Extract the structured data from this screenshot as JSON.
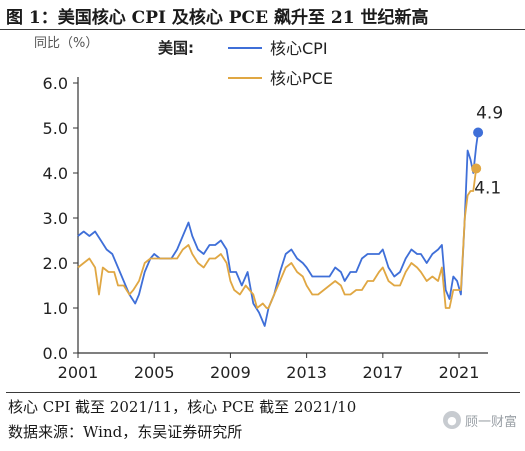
{
  "figure": {
    "title": "图 1：美国核心 CPI 及核心 PCE 飙升至 21 世纪新高",
    "note": "核心 CPI 截至 2021/11，核心 PCE 截至 2021/10",
    "source": "数据来源：Wind，东吴证券研究所",
    "watermark": "顾一财富"
  },
  "chart_data": {
    "type": "line",
    "title": "",
    "xlabel": "",
    "ylabel": "同比（%）",
    "legend_title": "美国:",
    "legend_position": "top-center",
    "grid": false,
    "xlim": [
      2001.0,
      2022.1
    ],
    "ylim": [
      0,
      6
    ],
    "x_ticks": [
      "2001",
      "2005",
      "2009",
      "2013",
      "2017",
      "2021"
    ],
    "y_ticks": [
      "0.0",
      "1.0",
      "2.0",
      "3.0",
      "4.0",
      "5.0",
      "6.0"
    ],
    "series": [
      {
        "name": "核心CPI",
        "color": "#3f6fd8",
        "points": [
          [
            2001.0,
            2.6
          ],
          [
            2001.3,
            2.7
          ],
          [
            2001.6,
            2.6
          ],
          [
            2001.9,
            2.7
          ],
          [
            2002.2,
            2.5
          ],
          [
            2002.5,
            2.3
          ],
          [
            2002.8,
            2.2
          ],
          [
            2003.1,
            1.9
          ],
          [
            2003.4,
            1.6
          ],
          [
            2003.7,
            1.3
          ],
          [
            2004.0,
            1.1
          ],
          [
            2004.2,
            1.3
          ],
          [
            2004.5,
            1.8
          ],
          [
            2004.8,
            2.1
          ],
          [
            2005.0,
            2.2
          ],
          [
            2005.3,
            2.1
          ],
          [
            2005.6,
            2.1
          ],
          [
            2005.9,
            2.1
          ],
          [
            2006.2,
            2.3
          ],
          [
            2006.5,
            2.6
          ],
          [
            2006.8,
            2.9
          ],
          [
            2007.0,
            2.6
          ],
          [
            2007.3,
            2.3
          ],
          [
            2007.6,
            2.2
          ],
          [
            2007.9,
            2.4
          ],
          [
            2008.2,
            2.4
          ],
          [
            2008.5,
            2.5
          ],
          [
            2008.8,
            2.3
          ],
          [
            2009.0,
            1.8
          ],
          [
            2009.3,
            1.8
          ],
          [
            2009.6,
            1.5
          ],
          [
            2009.9,
            1.8
          ],
          [
            2010.2,
            1.1
          ],
          [
            2010.5,
            0.9
          ],
          [
            2010.8,
            0.6
          ],
          [
            2011.0,
            1.0
          ],
          [
            2011.3,
            1.3
          ],
          [
            2011.6,
            1.8
          ],
          [
            2011.9,
            2.2
          ],
          [
            2012.2,
            2.3
          ],
          [
            2012.5,
            2.1
          ],
          [
            2012.8,
            2.0
          ],
          [
            2013.0,
            1.9
          ],
          [
            2013.3,
            1.7
          ],
          [
            2013.6,
            1.7
          ],
          [
            2013.9,
            1.7
          ],
          [
            2014.2,
            1.7
          ],
          [
            2014.5,
            1.9
          ],
          [
            2014.8,
            1.8
          ],
          [
            2015.0,
            1.6
          ],
          [
            2015.3,
            1.8
          ],
          [
            2015.6,
            1.8
          ],
          [
            2015.9,
            2.1
          ],
          [
            2016.2,
            2.2
          ],
          [
            2016.5,
            2.2
          ],
          [
            2016.8,
            2.2
          ],
          [
            2017.0,
            2.3
          ],
          [
            2017.3,
            1.9
          ],
          [
            2017.6,
            1.7
          ],
          [
            2017.9,
            1.8
          ],
          [
            2018.2,
            2.1
          ],
          [
            2018.5,
            2.3
          ],
          [
            2018.8,
            2.2
          ],
          [
            2019.0,
            2.2
          ],
          [
            2019.3,
            2.0
          ],
          [
            2019.6,
            2.2
          ],
          [
            2019.9,
            2.3
          ],
          [
            2020.1,
            2.4
          ],
          [
            2020.3,
            1.4
          ],
          [
            2020.5,
            1.2
          ],
          [
            2020.7,
            1.7
          ],
          [
            2020.9,
            1.6
          ],
          [
            2021.1,
            1.3
          ],
          [
            2021.3,
            3.0
          ],
          [
            2021.45,
            4.5
          ],
          [
            2021.6,
            4.3
          ],
          [
            2021.75,
            4.0
          ],
          [
            2021.9,
            4.6
          ],
          [
            2022.0,
            4.9
          ]
        ],
        "end_label": "4.9"
      },
      {
        "name": "核心PCE",
        "color": "#e0a743",
        "points": [
          [
            2001.0,
            1.9
          ],
          [
            2001.3,
            2.0
          ],
          [
            2001.6,
            2.1
          ],
          [
            2001.9,
            1.9
          ],
          [
            2002.1,
            1.3
          ],
          [
            2002.3,
            1.9
          ],
          [
            2002.6,
            1.8
          ],
          [
            2002.9,
            1.8
          ],
          [
            2003.1,
            1.5
          ],
          [
            2003.4,
            1.5
          ],
          [
            2003.7,
            1.3
          ],
          [
            2003.9,
            1.4
          ],
          [
            2004.2,
            1.6
          ],
          [
            2004.5,
            2.0
          ],
          [
            2004.8,
            2.1
          ],
          [
            2005.0,
            2.1
          ],
          [
            2005.3,
            2.1
          ],
          [
            2005.6,
            2.1
          ],
          [
            2005.9,
            2.1
          ],
          [
            2006.2,
            2.1
          ],
          [
            2006.5,
            2.3
          ],
          [
            2006.8,
            2.4
          ],
          [
            2007.0,
            2.2
          ],
          [
            2007.3,
            2.0
          ],
          [
            2007.6,
            1.9
          ],
          [
            2007.9,
            2.1
          ],
          [
            2008.2,
            2.1
          ],
          [
            2008.5,
            2.2
          ],
          [
            2008.8,
            2.0
          ],
          [
            2009.0,
            1.6
          ],
          [
            2009.2,
            1.4
          ],
          [
            2009.5,
            1.3
          ],
          [
            2009.8,
            1.5
          ],
          [
            2010.0,
            1.4
          ],
          [
            2010.2,
            1.3
          ],
          [
            2010.4,
            1.0
          ],
          [
            2010.7,
            1.1
          ],
          [
            2010.9,
            1.0
          ],
          [
            2011.0,
            1.0
          ],
          [
            2011.3,
            1.3
          ],
          [
            2011.6,
            1.6
          ],
          [
            2011.9,
            1.9
          ],
          [
            2012.2,
            2.0
          ],
          [
            2012.5,
            1.8
          ],
          [
            2012.8,
            1.7
          ],
          [
            2013.0,
            1.5
          ],
          [
            2013.3,
            1.3
          ],
          [
            2013.6,
            1.3
          ],
          [
            2013.9,
            1.4
          ],
          [
            2014.2,
            1.5
          ],
          [
            2014.5,
            1.6
          ],
          [
            2014.8,
            1.5
          ],
          [
            2015.0,
            1.3
          ],
          [
            2015.3,
            1.3
          ],
          [
            2015.6,
            1.4
          ],
          [
            2015.9,
            1.4
          ],
          [
            2016.2,
            1.6
          ],
          [
            2016.5,
            1.6
          ],
          [
            2016.8,
            1.8
          ],
          [
            2017.0,
            1.9
          ],
          [
            2017.3,
            1.6
          ],
          [
            2017.6,
            1.5
          ],
          [
            2017.9,
            1.5
          ],
          [
            2018.2,
            1.8
          ],
          [
            2018.5,
            2.0
          ],
          [
            2018.8,
            1.9
          ],
          [
            2019.0,
            1.8
          ],
          [
            2019.3,
            1.6
          ],
          [
            2019.6,
            1.7
          ],
          [
            2019.9,
            1.6
          ],
          [
            2020.1,
            1.9
          ],
          [
            2020.3,
            1.0
          ],
          [
            2020.5,
            1.0
          ],
          [
            2020.7,
            1.4
          ],
          [
            2020.9,
            1.4
          ],
          [
            2021.1,
            1.4
          ],
          [
            2021.3,
            3.0
          ],
          [
            2021.45,
            3.5
          ],
          [
            2021.6,
            3.6
          ],
          [
            2021.75,
            3.6
          ],
          [
            2021.9,
            4.1
          ]
        ],
        "end_label": "4.1"
      }
    ]
  }
}
